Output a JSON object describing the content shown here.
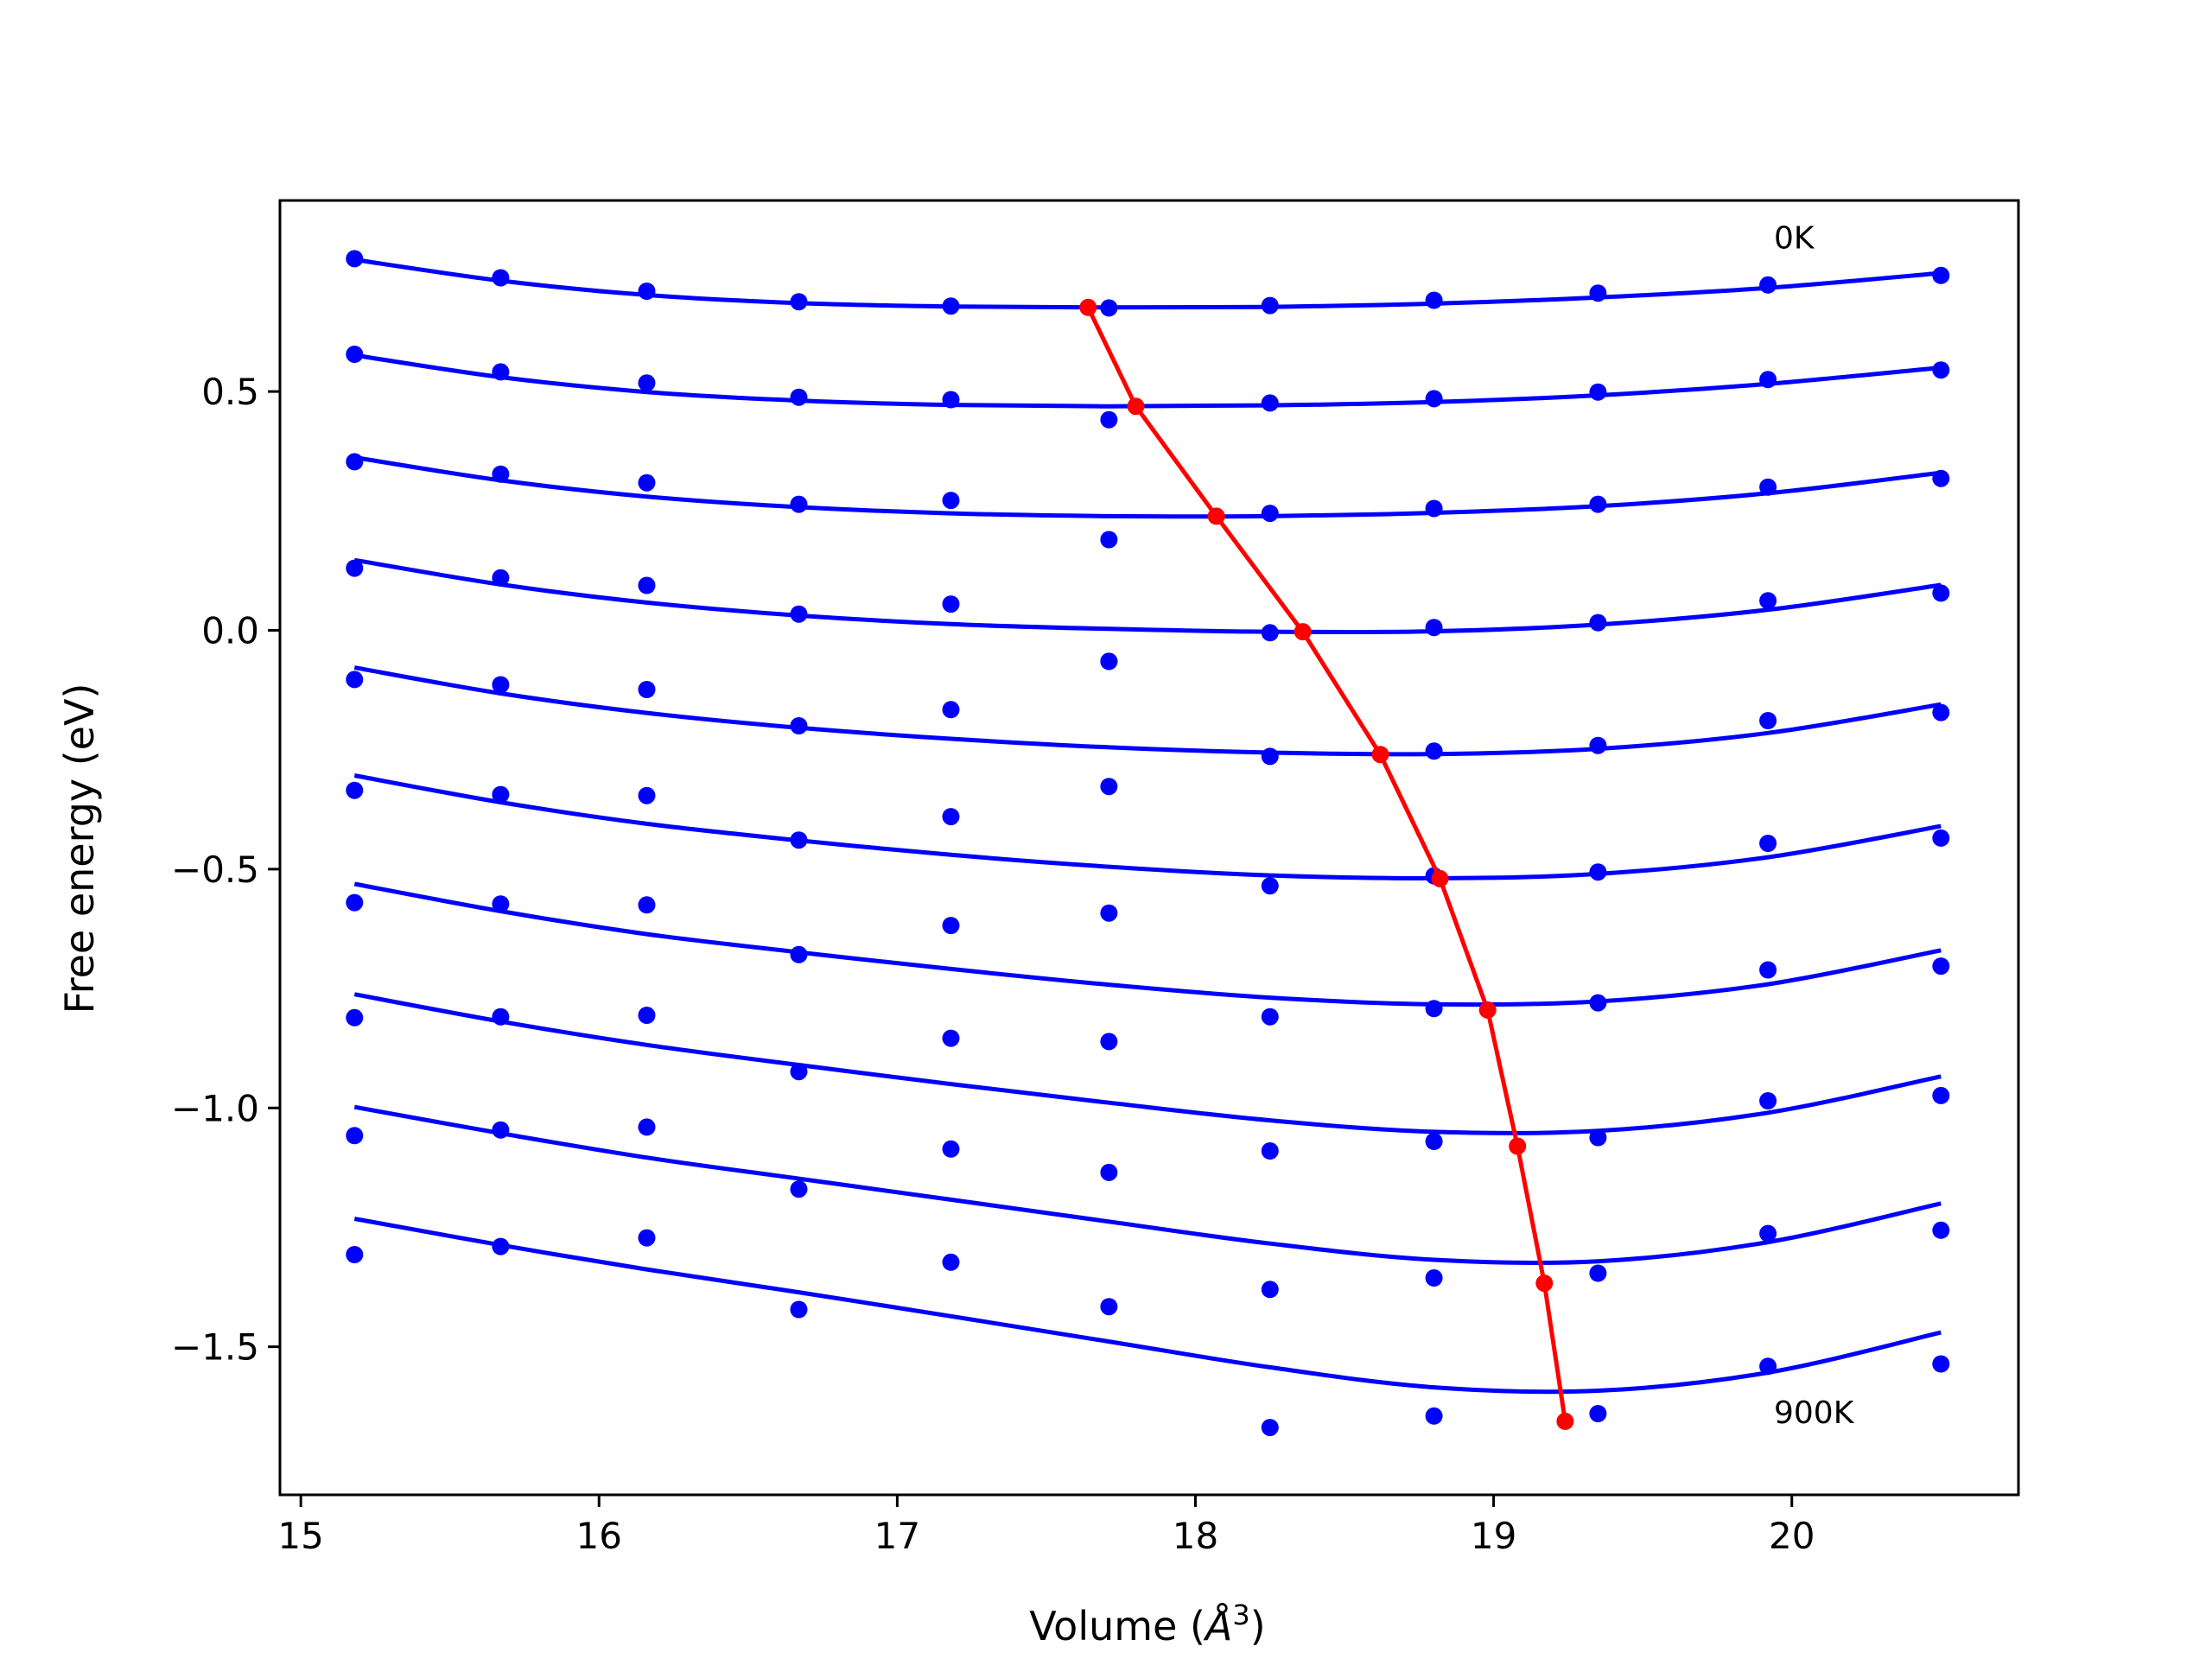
{
  "chart_data": {
    "type": "scatter",
    "xlabel_main": "Volume (",
    "xlabel_math": "Å",
    "xlabel_sup": "3",
    "xlabel_close": ")",
    "ylabel": "Free energy (eV)",
    "xlim": [
      14.93,
      20.76
    ],
    "ylim": [
      -1.81,
      0.9
    ],
    "xticks": [
      15,
      16,
      17,
      18,
      19,
      20
    ],
    "xtick_labels": [
      "15",
      "16",
      "17",
      "18",
      "19",
      "20"
    ],
    "yticks": [
      0.5,
      0.0,
      -0.5,
      -1.0,
      -1.5
    ],
    "ytick_labels": [
      "0.5",
      "0.0",
      "−0.5",
      "−1.0",
      "−1.5"
    ],
    "x": [
      15.18,
      15.67,
      16.16,
      16.67,
      17.18,
      17.71,
      18.25,
      18.8,
      19.35,
      19.92,
      20.5
    ],
    "annotations": [
      {
        "text": "0K",
        "x": 19.94,
        "y": 0.8
      },
      {
        "text": "900K",
        "x": 19.94,
        "y": -1.66
      }
    ],
    "colors": {
      "series": "#0000ff",
      "minimum_path": "#ff0000"
    },
    "series": [
      {
        "points": [
          0.778,
          0.738,
          0.71,
          0.688,
          0.679,
          0.675,
          0.68,
          0.691,
          0.706,
          0.723,
          0.743
        ],
        "fit": [
          0.776,
          0.732,
          0.702,
          0.685,
          0.678,
          0.676,
          0.677,
          0.684,
          0.697,
          0.717,
          0.748
        ]
      },
      {
        "points": [
          0.578,
          0.541,
          0.518,
          0.488,
          0.483,
          0.441,
          0.476,
          0.485,
          0.499,
          0.525,
          0.545
        ],
        "fit": [
          0.576,
          0.53,
          0.499,
          0.481,
          0.472,
          0.469,
          0.471,
          0.478,
          0.492,
          0.516,
          0.55
        ]
      },
      {
        "points": [
          0.353,
          0.327,
          0.309,
          0.264,
          0.272,
          0.19,
          0.245,
          0.255,
          0.264,
          0.3,
          0.318
        ],
        "fit": [
          0.362,
          0.314,
          0.28,
          0.258,
          0.245,
          0.239,
          0.239,
          0.246,
          0.26,
          0.287,
          0.33
        ]
      },
      {
        "points": [
          0.13,
          0.11,
          0.094,
          0.034,
          0.055,
          -0.065,
          -0.005,
          0.006,
          0.016,
          0.062,
          0.078
        ],
        "fit": [
          0.147,
          0.096,
          0.058,
          0.031,
          0.013,
          0.003,
          -0.003,
          -0.002,
          0.012,
          0.043,
          0.095
        ]
      },
      {
        "points": [
          -0.103,
          -0.114,
          -0.124,
          -0.2,
          -0.166,
          -0.065,
          -0.264,
          -0.253,
          -0.241,
          -0.189,
          -0.172
        ],
        "fit": [
          -0.078,
          -0.132,
          -0.173,
          -0.204,
          -0.227,
          -0.245,
          -0.256,
          -0.259,
          -0.248,
          -0.215,
          -0.155
        ]
      },
      {
        "points": [
          -0.335,
          -0.344,
          -0.346,
          -0.439,
          -0.39,
          -0.327,
          -0.535,
          -0.514,
          -0.506,
          -0.446,
          -0.435
        ],
        "fit": [
          -0.304,
          -0.36,
          -0.405,
          -0.44,
          -0.47,
          -0.495,
          -0.513,
          -0.519,
          -0.51,
          -0.475,
          -0.41
        ]
      },
      {
        "points": [
          -0.57,
          -0.573,
          -0.575,
          -0.679,
          -0.618,
          -0.592,
          -0.809,
          -0.792,
          -0.78,
          -0.711,
          -0.703
        ],
        "fit": [
          -0.531,
          -0.588,
          -0.636,
          -0.674,
          -0.709,
          -0.742,
          -0.769,
          -0.783,
          -0.777,
          -0.741,
          -0.67
        ]
      },
      {
        "points": [
          -0.811,
          -0.809,
          -0.806,
          -0.924,
          -0.854,
          -0.861,
          -1.09,
          -1.07,
          -1.062,
          -0.985,
          -0.974
        ],
        "fit": [
          -0.762,
          -0.819,
          -0.868,
          -0.91,
          -0.95,
          -0.989,
          -1.026,
          -1.05,
          -1.048,
          -1.01,
          -0.934
        ]
      },
      {
        "points": [
          -1.058,
          -1.046,
          -1.04,
          -1.17,
          -1.086,
          -1.135,
          -1.38,
          -1.356,
          -1.346,
          -1.263,
          -1.256
        ],
        "fit": [
          -0.998,
          -1.053,
          -1.104,
          -1.148,
          -1.192,
          -1.238,
          -1.284,
          -1.318,
          -1.321,
          -1.281,
          -1.2
        ]
      },
      {
        "points": [
          -1.307,
          -1.29,
          -1.272,
          -1.422,
          -1.323,
          -1.416,
          -1.669,
          -1.645,
          -1.64,
          -1.541,
          -1.536
        ],
        "fit": [
          -1.232,
          -1.287,
          -1.338,
          -1.386,
          -1.436,
          -1.489,
          -1.543,
          -1.585,
          -1.592,
          -1.554,
          -1.47
        ]
      }
    ],
    "minimum_path": {
      "x": [
        17.64,
        17.8,
        18.07,
        18.36,
        18.62,
        18.82,
        18.98,
        19.08,
        19.17,
        19.24
      ],
      "y": [
        0.676,
        0.469,
        0.239,
        -0.003,
        -0.26,
        -0.52,
        -0.795,
        -1.08,
        -1.367,
        -1.656
      ]
    }
  }
}
